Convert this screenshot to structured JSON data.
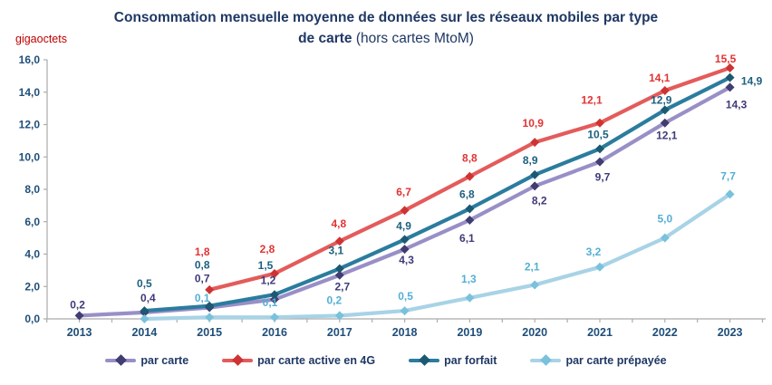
{
  "header": {
    "title_line1": "Consommation mensuelle moyenne de données sur les réseaux mobiles par type",
    "title_line2_bold": "de carte ",
    "title_line2_regular": "(hors cartes MtoM)",
    "y_unit_label": "gigaoctets"
  },
  "colors": {
    "title_text": "#1F3864",
    "axis_line": "#ABABAB",
    "tick_text": "#1F4E79",
    "unit_text": "#C00000"
  },
  "chart_data": {
    "type": "line",
    "title": "Consommation mensuelle moyenne de données sur les réseaux mobiles par type de carte (hors cartes MtoM)",
    "xlabel": "",
    "ylabel": "gigaoctets",
    "ylim": [
      0,
      16
    ],
    "ytick_step": 2,
    "ytick_labels": [
      "0,0",
      "2,0",
      "4,0",
      "6,0",
      "8,0",
      "10,0",
      "12,0",
      "14,0",
      "16,0"
    ],
    "grid": false,
    "legend_position": "bottom",
    "categories": [
      "2013",
      "2014",
      "2015",
      "2016",
      "2017",
      "2018",
      "2019",
      "2020",
      "2021",
      "2022",
      "2023"
    ],
    "series": [
      {
        "name": "par carte",
        "line_color": "#998FC7",
        "marker_color": "#413C72",
        "label_color": "#3E3A78",
        "values": [
          0.2,
          0.4,
          0.7,
          1.2,
          2.7,
          4.3,
          6.1,
          8.2,
          9.7,
          12.1,
          14.3
        ],
        "labels": [
          "0,2",
          "0,4",
          "0,7",
          "1,2",
          "2,7",
          "4,3",
          "6,1",
          "8,2",
          "9,7",
          "12,1",
          "14,3"
        ],
        "label_offsets": [
          [
            -2,
            -8
          ],
          [
            4,
            -12
          ],
          [
            -8,
            -28
          ],
          [
            -7,
            -17
          ],
          [
            3,
            17
          ],
          [
            2,
            16
          ],
          [
            -3,
            24
          ],
          [
            5,
            20
          ],
          [
            3,
            21
          ],
          [
            2,
            18
          ],
          [
            7,
            23
          ]
        ]
      },
      {
        "name": "par carte active en 4G",
        "line_color": "#E45B5B",
        "marker_color": "#CE3333",
        "label_color": "#E23333",
        "values": [
          null,
          null,
          1.8,
          2.8,
          4.8,
          6.7,
          8.8,
          10.9,
          12.1,
          14.1,
          15.5
        ],
        "labels": [
          null,
          null,
          "1,8",
          "2,8",
          "4,8",
          "6,7",
          "8,8",
          "10,9",
          "12,1",
          "14,1",
          "15,5"
        ],
        "label_offsets": [
          null,
          null,
          [
            -8,
            -38
          ],
          [
            -8,
            -23
          ],
          [
            -1,
            -15
          ],
          [
            -1,
            -16
          ],
          [
            0,
            -16
          ],
          [
            -2,
            -17
          ],
          [
            -9,
            -21
          ],
          [
            -6,
            -10
          ],
          [
            -5,
            -6
          ]
        ]
      },
      {
        "name": "par forfait",
        "line_color": "#2B7C9E",
        "marker_color": "#1C5972",
        "label_color": "#1D5F7F",
        "values": [
          null,
          0.5,
          0.8,
          1.5,
          3.1,
          4.9,
          6.8,
          8.9,
          10.5,
          12.9,
          14.9
        ],
        "labels": [
          null,
          "0,5",
          "0,8",
          "1,5",
          "3,1",
          "4,9",
          "6,8",
          "8,9",
          "10,5",
          "12,9",
          "14,9"
        ],
        "label_offsets": [
          null,
          [
            0,
            -26
          ],
          [
            -8,
            -41
          ],
          [
            -10,
            -28
          ],
          [
            -4,
            -16
          ],
          [
            -1,
            -11
          ],
          [
            -3,
            -12
          ],
          [
            -5,
            -12
          ],
          [
            -2,
            -12
          ],
          [
            -4,
            -7
          ],
          [
            24,
            8
          ]
        ]
      },
      {
        "name": "par carte prépayée",
        "line_color": "#A8D3E6",
        "marker_color": "#79C1DC",
        "label_color": "#54AFD4",
        "values": [
          null,
          0.0,
          0.1,
          0.1,
          0.2,
          0.5,
          1.3,
          2.1,
          3.2,
          5.0,
          7.7
        ],
        "labels": [
          null,
          null,
          "0,1",
          "0,1",
          "0,2",
          "0,5",
          "1,3",
          "2,1",
          "3,2",
          "5,0",
          "7,7"
        ],
        "label_offsets": [
          null,
          null,
          [
            -8,
            -17
          ],
          [
            -5,
            -12
          ],
          [
            -6,
            -13
          ],
          [
            1,
            -12
          ],
          [
            -1,
            -17
          ],
          [
            -3,
            -16
          ],
          [
            -7,
            -13
          ],
          [
            0,
            -17
          ],
          [
            -2,
            -16
          ]
        ]
      }
    ]
  }
}
